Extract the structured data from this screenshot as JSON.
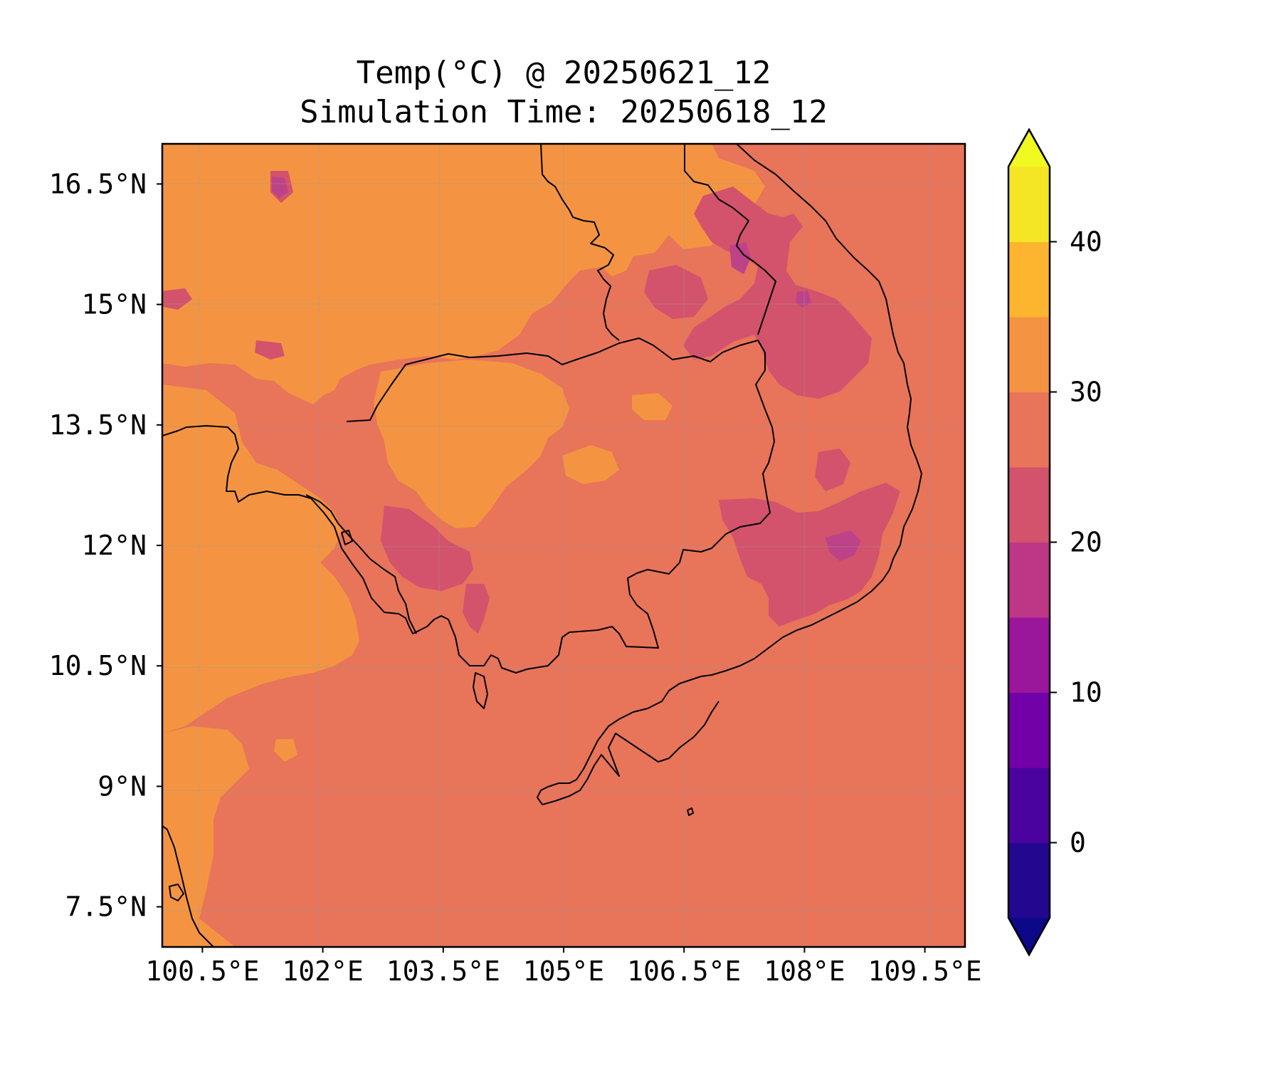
{
  "title": "Temp(°C) @ 20250621_12",
  "subtitle": "Simulation Time: 20250618_12",
  "map": {
    "region": "Cambodia and surrounding Indochina",
    "lon_range": [
      100.0,
      110.0
    ],
    "lat_range": [
      7.0,
      17.0
    ],
    "x_ticks": [
      {
        "value": 100.5,
        "label": "100.5°E"
      },
      {
        "value": 102.0,
        "label": "102°E"
      },
      {
        "value": 103.5,
        "label": "103.5°E"
      },
      {
        "value": 105.0,
        "label": "105°E"
      },
      {
        "value": 106.5,
        "label": "106.5°E"
      },
      {
        "value": 108.0,
        "label": "108°E"
      },
      {
        "value": 109.5,
        "label": "109.5°E"
      }
    ],
    "y_ticks": [
      {
        "value": 16.5,
        "label": "16.5°N"
      },
      {
        "value": 15.0,
        "label": "15°N"
      },
      {
        "value": 13.5,
        "label": "13.5°N"
      },
      {
        "value": 12.0,
        "label": "12°N"
      },
      {
        "value": 10.5,
        "label": "10.5°N"
      },
      {
        "value": 9.0,
        "label": "9°N"
      },
      {
        "value": 7.5,
        "label": "7.5°N"
      }
    ],
    "field_colors": {
      "background_25_30": "#e8745a",
      "warm_30_35": "#f49442",
      "cool_20_25": "#d3526c",
      "cooler_15_20": "#bd4288"
    },
    "gridlines": true
  },
  "colorbar": {
    "levels": [
      -5,
      0,
      5,
      10,
      15,
      20,
      25,
      30,
      35,
      40,
      45
    ],
    "colors": [
      "#23078e",
      "#4b039f",
      "#7301a8",
      "#9a179b",
      "#bd3786",
      "#d3526c",
      "#e8745a",
      "#f49442",
      "#fdb42f",
      "#f4e525"
    ],
    "under_color": "#0d0887",
    "over_color": "#f0f921",
    "extend": "both",
    "ticks": [
      {
        "value": 0,
        "label": "0"
      },
      {
        "value": 10,
        "label": "10"
      },
      {
        "value": 20,
        "label": "20"
      },
      {
        "value": 30,
        "label": "30"
      },
      {
        "value": 40,
        "label": "40"
      }
    ]
  }
}
